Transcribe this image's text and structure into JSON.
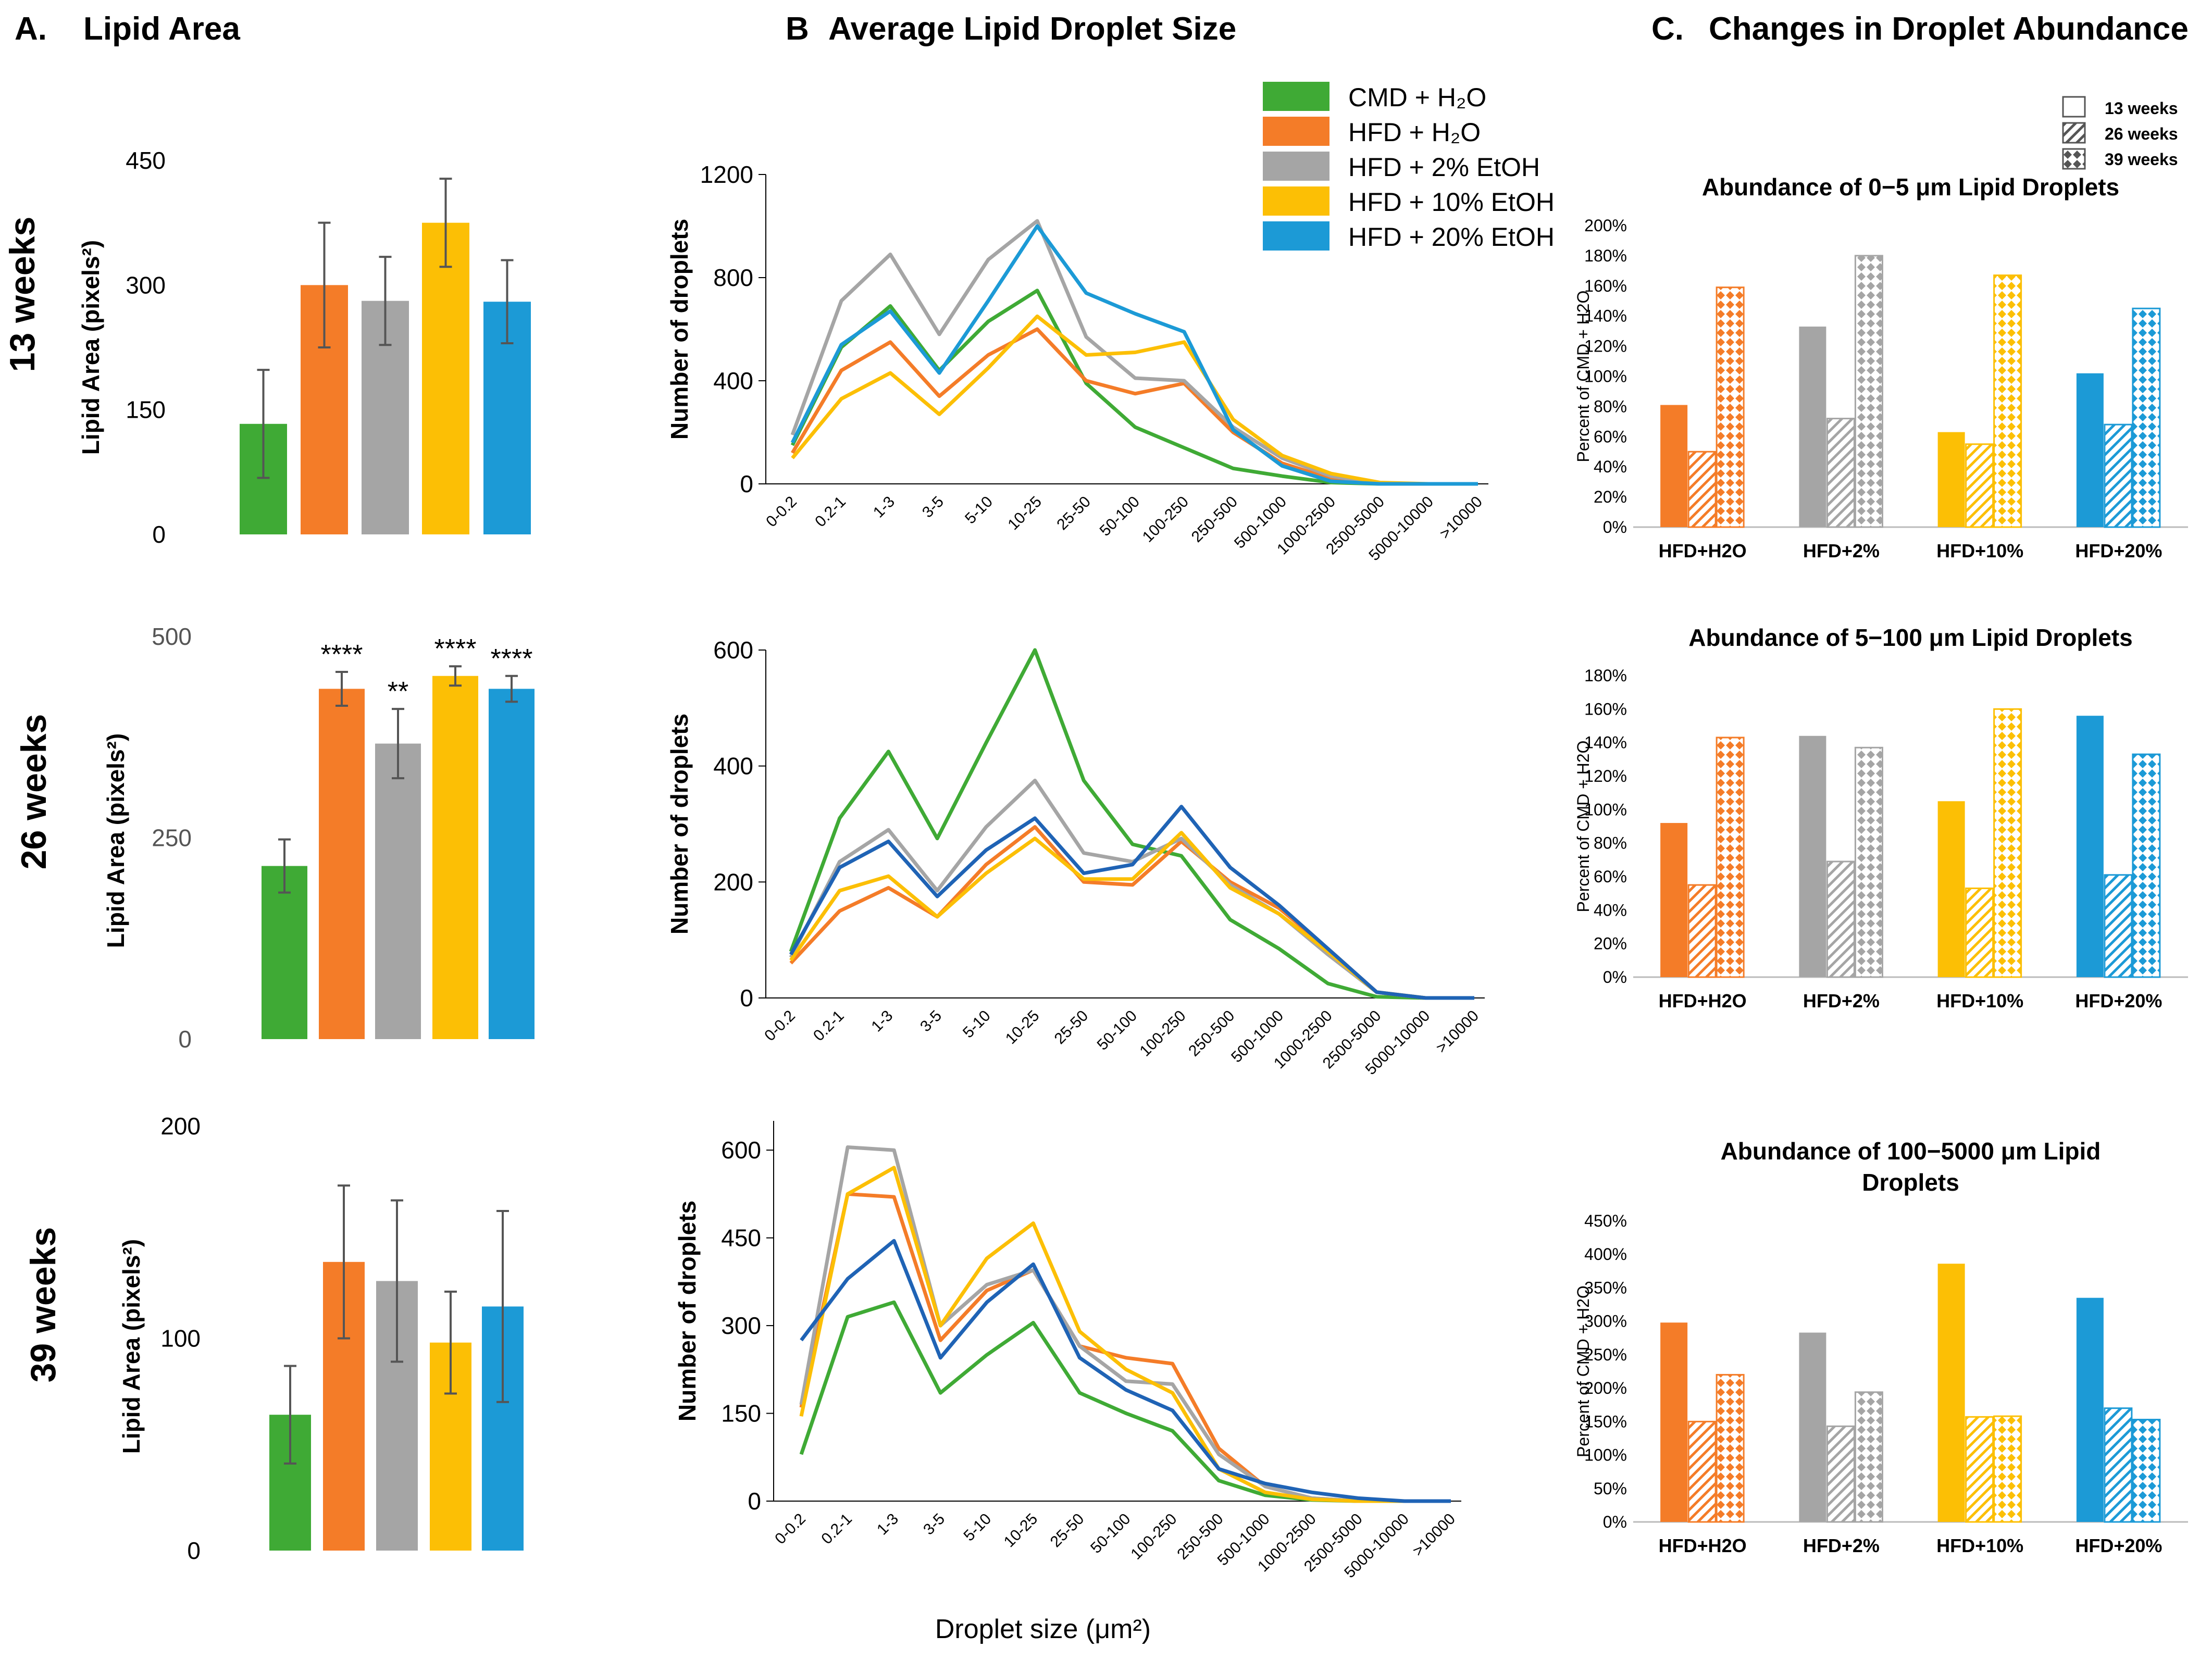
{
  "panel_titles": {
    "a_letter": "A.",
    "a": "Lipid Area",
    "b_letter": "B",
    "b": "Average Lipid Droplet Size",
    "c_letter": "C.",
    "c": "Changes in Droplet Abundance"
  },
  "row_labels": [
    "13 weeks",
    "26 weeks",
    "39 weeks"
  ],
  "colors": {
    "CMD": "#3faa35",
    "HFD": "#f47c28",
    "EtOH2": "#a5a5a5",
    "EtOH10": "#fcbf05",
    "EtOH20": "#1c9ad6",
    "line_EtOH20_dark": "#1f63b5"
  },
  "legend": {
    "items": [
      {
        "label": "CMD + H₂O",
        "color": "#3faa35"
      },
      {
        "label": "HFD + H₂O",
        "color": "#f47c28"
      },
      {
        "label": "HFD + 2% EtOH",
        "color": "#a5a5a5"
      },
      {
        "label": "HFD + 10% EtOH",
        "color": "#fcbf05"
      },
      {
        "label": "HFD + 20% EtOH",
        "color": "#1c9ad6"
      }
    ]
  },
  "x_axis_label": "Droplet size (μm²)",
  "chart_data": [
    {
      "id": "A1",
      "type": "bar",
      "title": "Lipid Area 13 weeks",
      "ylabel": "Lipid Area (pixels²)",
      "ylim": [
        0,
        450
      ],
      "yticks": [
        0,
        150,
        300,
        450
      ],
      "categories": [
        "CMD + H2O",
        "HFD + H2O",
        "HFD + 2% EtOH",
        "HFD + 10% EtOH",
        "HFD + 20% EtOH"
      ],
      "values": [
        133,
        300,
        281,
        375,
        280
      ],
      "errors": [
        65,
        75,
        53,
        53,
        50
      ],
      "annotations": [
        "",
        "",
        "",
        "",
        ""
      ]
    },
    {
      "id": "A2",
      "type": "bar",
      "title": "Lipid Area 26 weeks",
      "ylabel": "Lipid Area (pixels²)",
      "ylim": [
        0,
        500
      ],
      "yticks": [
        0,
        250,
        500
      ],
      "categories": [
        "CMD + H2O",
        "HFD + H2O",
        "HFD + 2% EtOH",
        "HFD + 10% EtOH",
        "HFD + 20% EtOH"
      ],
      "values": [
        215,
        435,
        367,
        451,
        435
      ],
      "errors": [
        33,
        21,
        43,
        12,
        16
      ],
      "annotations": [
        "",
        "****",
        "**",
        "****",
        "****"
      ]
    },
    {
      "id": "A3",
      "type": "bar",
      "title": "Lipid Area 39 weeks",
      "ylabel": "Lipid Area (pixels²)",
      "ylim": [
        0,
        200
      ],
      "yticks": [
        0,
        100,
        200
      ],
      "categories": [
        "CMD + H2O",
        "HFD + H2O",
        "HFD + 2% EtOH",
        "HFD + 10% EtOH",
        "HFD + 20% EtOH"
      ],
      "values": [
        64,
        136,
        127,
        98,
        115
      ],
      "errors": [
        23,
        36,
        38,
        24,
        45
      ],
      "annotations": [
        "",
        "",
        "",
        "",
        ""
      ]
    },
    {
      "id": "B1",
      "type": "line",
      "title": "Average Lipid Droplet Size 13 weeks",
      "xlabel": "Droplet size (μm²)",
      "ylabel": "Number of droplets",
      "ylim": [
        0,
        1200
      ],
      "yticks": [
        0,
        400,
        800,
        1200
      ],
      "categories": [
        "0-0.2",
        "0.2-1",
        "1-3",
        "3-5",
        "5-10",
        "10-25",
        "25-50",
        "50-100",
        "100-250",
        "250-500",
        "500-1000",
        "1000-2500",
        "2500-5000",
        "5000-10000",
        ">10000"
      ],
      "series": [
        {
          "name": "CMD + H2O",
          "values": [
            150,
            530,
            690,
            440,
            630,
            750,
            390,
            220,
            140,
            60,
            30,
            5,
            0,
            0,
            0
          ]
        },
        {
          "name": "HFD + H2O",
          "values": [
            120,
            440,
            550,
            340,
            500,
            600,
            400,
            350,
            390,
            200,
            80,
            20,
            0,
            0,
            0
          ]
        },
        {
          "name": "HFD + 2% EtOH",
          "values": [
            190,
            710,
            890,
            580,
            870,
            1020,
            570,
            410,
            400,
            220,
            100,
            30,
            0,
            0,
            0
          ]
        },
        {
          "name": "HFD + 10% EtOH",
          "values": [
            100,
            330,
            430,
            270,
            450,
            650,
            500,
            510,
            550,
            250,
            110,
            40,
            5,
            0,
            0
          ]
        },
        {
          "name": "HFD + 20% EtOH",
          "values": [
            160,
            540,
            670,
            430,
            710,
            1000,
            740,
            660,
            590,
            210,
            70,
            10,
            0,
            0,
            0
          ]
        }
      ]
    },
    {
      "id": "B2",
      "type": "line",
      "title": "Average Lipid Droplet Size 26 weeks",
      "xlabel": "Droplet size (μm²)",
      "ylabel": "Number of droplets",
      "ylim": [
        0,
        600
      ],
      "yticks": [
        0,
        200,
        400,
        600
      ],
      "categories": [
        "0-0.2",
        "0.2-1",
        "1-3",
        "3-5",
        "5-10",
        "10-25",
        "25-50",
        "50-100",
        "100-250",
        "250-500",
        "500-1000",
        "1000-2500",
        "2500-5000",
        "5000-10000",
        ">10000"
      ],
      "series": [
        {
          "name": "CMD + H2O",
          "values": [
            80,
            310,
            425,
            275,
            440,
            600,
            375,
            265,
            245,
            135,
            85,
            25,
            2,
            0,
            0
          ]
        },
        {
          "name": "HFD + H2O",
          "values": [
            60,
            150,
            190,
            140,
            230,
            295,
            200,
            195,
            270,
            200,
            155,
            85,
            10,
            0,
            0
          ]
        },
        {
          "name": "HFD + 2% EtOH",
          "values": [
            70,
            235,
            290,
            185,
            295,
            375,
            250,
            235,
            275,
            195,
            145,
            75,
            10,
            0,
            0
          ]
        },
        {
          "name": "HFD + 10% EtOH",
          "values": [
            65,
            185,
            210,
            140,
            215,
            275,
            205,
            205,
            285,
            190,
            145,
            80,
            10,
            0,
            0
          ]
        },
        {
          "name": "HFD + 20% EtOH",
          "values": [
            75,
            225,
            270,
            175,
            255,
            310,
            215,
            230,
            330,
            225,
            160,
            85,
            10,
            0,
            0
          ]
        }
      ]
    },
    {
      "id": "B3",
      "type": "line",
      "title": "Average Lipid Droplet Size 39 weeks",
      "xlabel": "Droplet size (μm²)",
      "ylabel": "Number of droplets",
      "ylim": [
        0,
        650
      ],
      "yticks": [
        0,
        150,
        300,
        450,
        600
      ],
      "categories": [
        "0-0.2",
        "0.2-1",
        "1-3",
        "3-5",
        "5-10",
        "10-25",
        "25-50",
        "50-100",
        "100-250",
        "250-500",
        "500-1000",
        "1000-2500",
        "2500-5000",
        "5000-10000",
        ">10000"
      ],
      "series": [
        {
          "name": "CMD + H2O",
          "values": [
            80,
            315,
            340,
            185,
            250,
            305,
            185,
            150,
            120,
            35,
            10,
            2,
            0,
            0,
            0
          ]
        },
        {
          "name": "HFD + H2O",
          "values": [
            160,
            525,
            520,
            275,
            360,
            395,
            265,
            245,
            235,
            90,
            25,
            5,
            0,
            0,
            0
          ]
        },
        {
          "name": "HFD + 2% EtOH",
          "values": [
            165,
            605,
            600,
            300,
            370,
            395,
            265,
            205,
            200,
            80,
            25,
            5,
            0,
            0,
            0
          ]
        },
        {
          "name": "HFD + 10% EtOH",
          "values": [
            145,
            525,
            570,
            300,
            415,
            475,
            290,
            225,
            185,
            55,
            15,
            3,
            0,
            0,
            0
          ]
        },
        {
          "name": "HFD + 20% EtOH",
          "values": [
            275,
            380,
            445,
            245,
            340,
            405,
            245,
            190,
            155,
            55,
            30,
            15,
            5,
            0,
            0
          ]
        }
      ]
    },
    {
      "id": "C1",
      "type": "bar",
      "title": "Abundance of 0−5 μm Lipid Droplets",
      "ylabel": "Percent of CMD + H2O",
      "ylim": [
        0,
        200
      ],
      "ytick_step": 20,
      "categories": [
        "HFD+H2O",
        "HFD+2%",
        "HFD+10%",
        "HFD+20%"
      ],
      "series": [
        {
          "name": "13 weeks",
          "values": [
            81,
            133,
            63,
            102
          ]
        },
        {
          "name": "26 weeks",
          "values": [
            50,
            72,
            55,
            68
          ]
        },
        {
          "name": "39 weeks",
          "values": [
            159,
            180,
            167,
            145
          ]
        }
      ]
    },
    {
      "id": "C2",
      "type": "bar",
      "title": "Abundance of 5−100 μm Lipid Droplets",
      "ylabel": "Percent of CMD + H2O",
      "ylim": [
        0,
        180
      ],
      "ytick_step": 20,
      "categories": [
        "HFD+H2O",
        "HFD+2%",
        "HFD+10%",
        "HFD+20%"
      ],
      "series": [
        {
          "name": "13 weeks",
          "values": [
            92,
            144,
            105,
            156
          ]
        },
        {
          "name": "26 weeks",
          "values": [
            55,
            69,
            53,
            61
          ]
        },
        {
          "name": "39 weeks",
          "values": [
            143,
            137,
            160,
            133
          ]
        }
      ]
    },
    {
      "id": "C3",
      "type": "bar",
      "title": "Abundance of 100−5000 μm Lipid Droplets",
      "title_lines": [
        "Abundance of 100−5000 μm Lipid",
        "Droplets"
      ],
      "ylabel": "Percent of CMD + H2O",
      "ylim": [
        0,
        450
      ],
      "ytick_step": 50,
      "categories": [
        "HFD+H2O",
        "HFD+2%",
        "HFD+10%",
        "HFD+20%"
      ],
      "series": [
        {
          "name": "13 weeks",
          "values": [
            298,
            283,
            386,
            335
          ]
        },
        {
          "name": "26 weeks",
          "values": [
            150,
            143,
            157,
            170
          ]
        },
        {
          "name": "39 weeks",
          "values": [
            220,
            194,
            158,
            153
          ]
        }
      ]
    }
  ],
  "pattern_legend": [
    "13 weeks",
    "26 weeks",
    "39 weeks"
  ]
}
